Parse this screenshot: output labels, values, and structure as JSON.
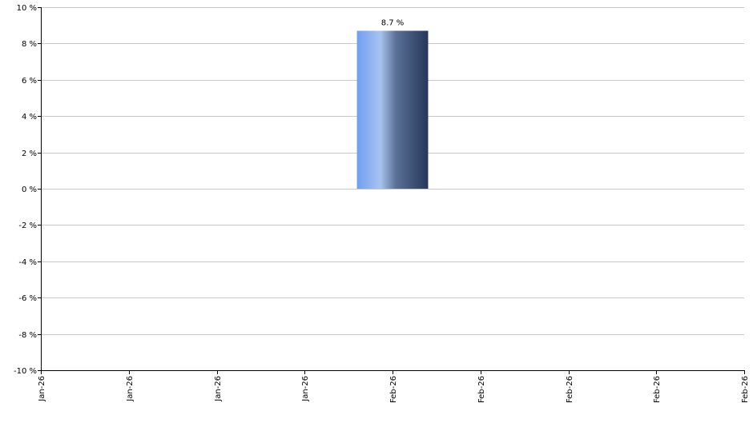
{
  "chart_data": {
    "type": "bar",
    "title": "",
    "xlabel": "",
    "ylabel": "",
    "x_tick_labels": [
      "Jan-26",
      "Jan-26",
      "Jan-26",
      "Jan-26",
      "Feb-26",
      "Feb-26",
      "Feb-26",
      "Feb-26",
      "Feb-26"
    ],
    "y_ticks": [
      10,
      8,
      6,
      4,
      2,
      0,
      -2,
      -4,
      -6,
      -8,
      -10
    ],
    "y_tick_labels": [
      "10 %",
      "8 %",
      "6 %",
      "4 %",
      "2 %",
      "0 %",
      "-2 %",
      "-4 %",
      "-6 %",
      "-8 %",
      "-10 %"
    ],
    "ylim": [
      -10,
      10
    ],
    "grid": true,
    "legend": "none",
    "bars": [
      {
        "category_index": 4,
        "value": 8.7,
        "label": "8.7 %"
      }
    ],
    "colors": {
      "bar_gradient": [
        "#6f9ef0",
        "#a9c3ef",
        "#5a7096",
        "#26375a"
      ],
      "grid": "#c8c8c8",
      "axis": "#000000"
    }
  }
}
